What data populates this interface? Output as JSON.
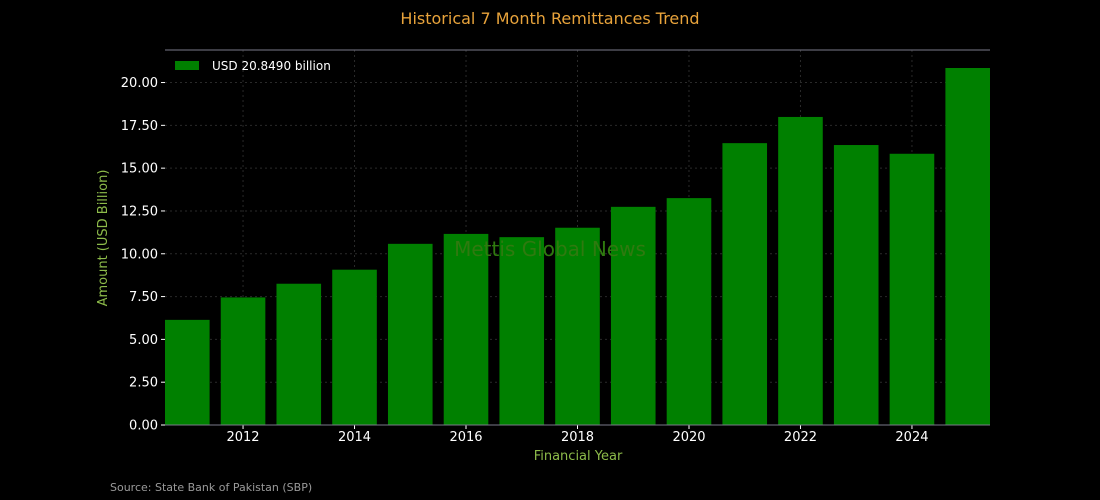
{
  "chart_data": {
    "type": "bar",
    "title": "Historical 7 Month Remittances Trend",
    "xlabel": "Financial Year",
    "ylabel": "Amount (USD Billion)",
    "x": [
      2011,
      2012,
      2013,
      2014,
      2015,
      2016,
      2017,
      2018,
      2019,
      2020,
      2021,
      2022,
      2023,
      2024,
      2025
    ],
    "values": [
      6.14,
      7.45,
      8.25,
      9.07,
      10.58,
      11.16,
      10.97,
      11.52,
      12.74,
      13.25,
      16.46,
      17.99,
      16.35,
      15.84,
      20.849
    ],
    "xlim": [
      2010.6,
      2025.4
    ],
    "ylim": [
      0,
      21.9
    ],
    "xticks": [
      2012,
      2014,
      2016,
      2018,
      2020,
      2022,
      2024
    ],
    "yticks": [
      0,
      2.5,
      5,
      7.5,
      10,
      12.5,
      15,
      17.5,
      20
    ],
    "ytick_labels": [
      "0.00",
      "2.50",
      "5.00",
      "7.50",
      "10.00",
      "12.50",
      "15.00",
      "17.50",
      "20.00"
    ],
    "legend": {
      "label": "USD 20.8490 billion",
      "position": "top-left"
    },
    "grid": true,
    "bar_color": "#008000"
  },
  "watermark": "Mettis Global News",
  "source": "Source: State Bank of Pakistan (SBP)",
  "colors": {
    "background": "#000000",
    "title": "#e8a33b",
    "axis_label": "#8dbb4a",
    "bar": "#008000"
  }
}
